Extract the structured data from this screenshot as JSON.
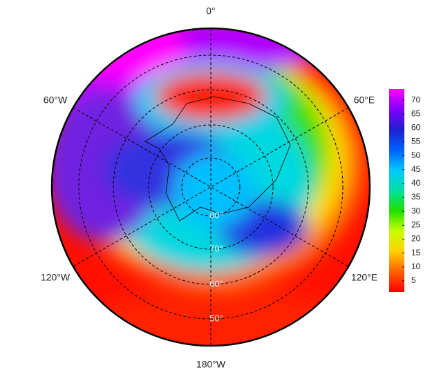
{
  "map": {
    "lon_labels": [
      "0°",
      "60°E",
      "120°E",
      "180°W",
      "120°W",
      "60°W"
    ],
    "lat_labels": [
      "80°",
      "70°",
      "60°",
      "50°"
    ],
    "colorbar": {
      "lim": [
        1,
        74
      ],
      "ticks": [
        5,
        10,
        15,
        20,
        25,
        30,
        35,
        40,
        45,
        50,
        55,
        60,
        65,
        70
      ],
      "colors": [
        "#ff0000",
        "#ff6000",
        "#ffd000",
        "#c8ff00",
        "#20e000",
        "#00e0a0",
        "#00c8ff",
        "#0060ff",
        "#2020d0",
        "#8000ff",
        "#ff00ff"
      ]
    }
  }
}
